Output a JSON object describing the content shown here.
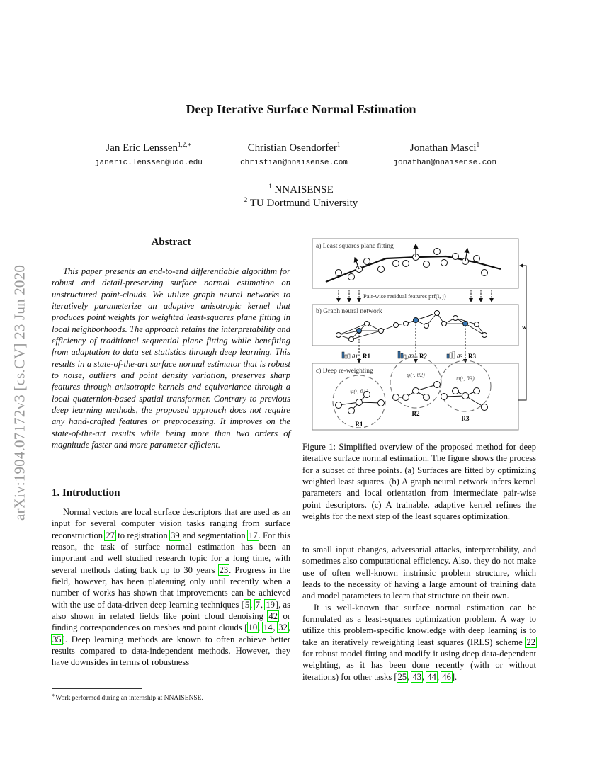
{
  "side_stamp": "arXiv:1904.07172v3  [cs.CV]  23 Jun 2020",
  "title": "Deep Iterative Surface Normal Estimation",
  "authors": [
    {
      "name": "Jan Eric Lenssen",
      "sup": "1,2,∗",
      "email": "janeric.lenssen@udo.edu"
    },
    {
      "name": "Christian Osendorfer",
      "sup": "1",
      "email": "christian@nnaisense.com"
    },
    {
      "name": "Jonathan Masci",
      "sup": "1",
      "email": "jonathan@nnaisense.com"
    }
  ],
  "affiliations": [
    {
      "sup": "1",
      "name": "NNAISENSE"
    },
    {
      "sup": "2",
      "name": "TU Dortmund University"
    }
  ],
  "abstract": {
    "heading": "Abstract",
    "text": "This paper presents an end-to-end differentiable algorithm for robust and detail-preserving surface normal estimation on unstructured point-clouds.  We utilize graph neural networks to iteratively parameterize an adaptive anisotropic kernel that produces point weights for weighted least-squares plane fitting in local neighborhoods. The approach retains the interpretability and efficiency of traditional sequential plane fitting while benefiting from adaptation to data set statistics through deep learning. This results in a state-of-the-art surface normal estimator that is robust to noise, outliers and point density variation, preserves sharp features through anisotropic kernels and equivariance through a local quaternion-based spatial transformer. Contrary to previous deep learning methods, the proposed approach does not require any hand-crafted features or preprocessing. It improves on the state-of-the-art results while being more than two orders of magnitude faster and more parameter efficient."
  },
  "introduction": {
    "heading": "1. Introduction",
    "paragraph": [
      {
        "t": "Normal vectors are local surface descriptors that are used as an input for several computer vision tasks ranging from surface reconstruction "
      },
      {
        "c": "27"
      },
      {
        "t": " to registration "
      },
      {
        "c": "39"
      },
      {
        "t": " and segmentation "
      },
      {
        "c": "17"
      },
      {
        "t": ".  For this reason, the task of surface normal estimation has been an important and well studied research topic for a long time, with several methods dating back up to 30 years "
      },
      {
        "c": "23"
      },
      {
        "t": ".  Progress in the field, however, has been plateauing only until recently when a number of works has shown that improvements can be achieved with the use of data-driven deep learning techniques ["
      },
      {
        "c": "5"
      },
      {
        "t": ", "
      },
      {
        "c": "7"
      },
      {
        "t": ", "
      },
      {
        "c": "19"
      },
      {
        "t": "], as also shown in related fields like point cloud denoising "
      },
      {
        "c": "42"
      },
      {
        "t": " or finding correspondences on meshes and point clouds ["
      },
      {
        "c": "10"
      },
      {
        "t": ", "
      },
      {
        "c": "14"
      },
      {
        "t": ", "
      },
      {
        "c": "32"
      },
      {
        "t": ", "
      },
      {
        "c": "35"
      },
      {
        "t": "]. Deep learning methods are known to often achieve better results compared to data-independent methods. However, they have downsides in terms of robustness"
      }
    ]
  },
  "footnote": {
    "sup": "∗",
    "text": "Work performed during an internship at NNAISENSE."
  },
  "figure": {
    "panel_a": "a) Least squares plane fitting",
    "panel_b": "b) Graph neural network",
    "panel_c": "c) Deep re-weighting",
    "prf_label": "Pair-wise residual features prf(i, j)",
    "weights_label": "w",
    "thetas": [
      "θ1",
      "θ2",
      "θ3"
    ],
    "rotations": [
      "R1",
      "R2",
      "R3"
    ],
    "kernels": [
      "ψ(·, θ1)",
      "ψ(·, θ2)",
      "ψ(·, θ3)"
    ],
    "highlight_color": "#3a7ab8",
    "caption": "Figure 1: Simplified overview of the proposed method for deep iterative surface normal estimation. The figure shows the process for a subset of three points. (a) Surfaces are fitted by optimizing weighted least squares. (b) A graph neural network infers kernel parameters and local orientation from intermediate pair-wise point descriptors. (c) A trainable, adaptive kernel refines the weights for the next step of the least squares optimization."
  },
  "right_column": {
    "paragraph1": "to small input changes, adversarial attacks, interpretability, and sometimes also computational efficiency. Also, they do not make use of often well-known instrinsic problem structure, which leads to the necessity of having a large amount of training data and model parameters to learn that structure on their own.",
    "paragraph2": [
      {
        "t": "It is well-known that surface normal estimation can be formulated as a least-squares optimization problem. A way to utilize this problem-specific knowledge with deep learning is to take an iteratively reweighting least squares (IRLS) scheme "
      },
      {
        "c": "22"
      },
      {
        "t": " for robust model fitting and modify it using deep data-dependent weighting, as it has been done recently (with or without iterations) for other tasks ["
      },
      {
        "c": "25"
      },
      {
        "t": ", "
      },
      {
        "c": "43"
      },
      {
        "t": ", "
      },
      {
        "c": "44"
      },
      {
        "t": ", "
      },
      {
        "c": "46"
      },
      {
        "t": "]."
      }
    ]
  }
}
